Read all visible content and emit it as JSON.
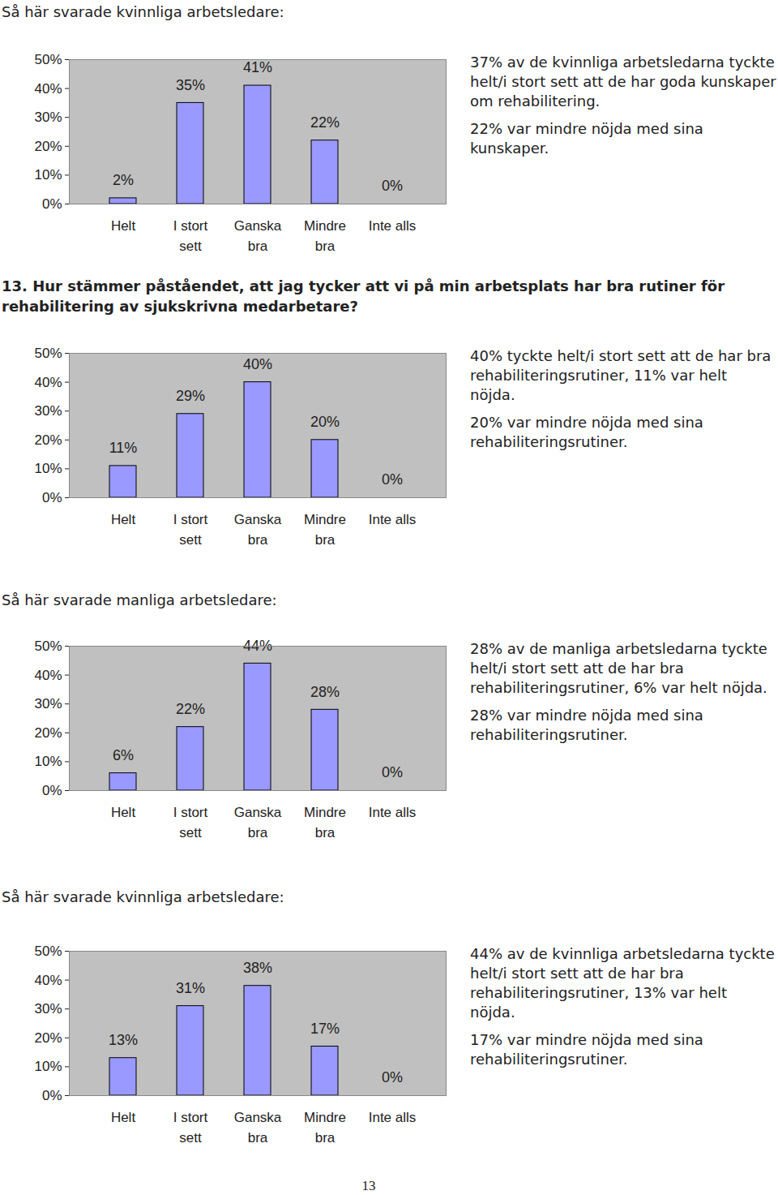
{
  "chart_data": [
    {
      "type": "bar",
      "title": "Så här svarade kvinnliga arbetsledare:",
      "categories": [
        "Helt",
        "I stort\nsett",
        "Ganska\nbra",
        "Mindre\nbra",
        "Inte alls"
      ],
      "values": [
        2,
        35,
        41,
        22,
        0
      ],
      "value_labels": [
        "2%",
        "35%",
        "41%",
        "22%",
        "0%"
      ],
      "color": "#9999ff",
      "data_labels": true,
      "grid": false,
      "ylim": [
        0,
        50
      ],
      "yticks": [
        {
          "value": 0,
          "label": "0%"
        },
        {
          "value": 10,
          "label": "10%"
        },
        {
          "value": 20,
          "label": "20%"
        },
        {
          "value": 30,
          "label": "30%"
        },
        {
          "value": 40,
          "label": "40%"
        },
        {
          "value": 50,
          "label": "50%"
        }
      ],
      "annotations": [
        "37% av de kvinnliga arbetsledarna tyckte helt/i stort sett att de har goda kunskaper om rehabilitering.",
        "22% var mindre nöjda med sina kunskaper."
      ]
    },
    {
      "type": "bar",
      "title": "13. Hur stämmer påståendet, att jag tycker att vi på min arbetsplats har bra rutiner för rehabilitering av sjukskrivna medarbetare?",
      "categories": [
        "Helt",
        "I stort\nsett",
        "Ganska\nbra",
        "Mindre\nbra",
        "Inte alls"
      ],
      "values": [
        11,
        29,
        40,
        20,
        0
      ],
      "value_labels": [
        "11%",
        "29%",
        "40%",
        "20%",
        "0%"
      ],
      "color": "#9999ff",
      "data_labels": true,
      "grid": false,
      "ylim": [
        0,
        50
      ],
      "yticks": [
        {
          "value": 0,
          "label": "0%"
        },
        {
          "value": 10,
          "label": "10%"
        },
        {
          "value": 20,
          "label": "20%"
        },
        {
          "value": 30,
          "label": "30%"
        },
        {
          "value": 40,
          "label": "40%"
        },
        {
          "value": 50,
          "label": "50%"
        }
      ],
      "annotations": [
        "40% tyckte helt/i stort sett att de har bra rehabiliteringsrutiner, 11% var helt nöjda.",
        "20% var mindre nöjda med sina rehabiliteringsrutiner."
      ]
    },
    {
      "type": "bar",
      "title": "Så här svarade manliga arbetsledare:",
      "categories": [
        "Helt",
        "I stort\nsett",
        "Ganska\nbra",
        "Mindre\nbra",
        "Inte alls"
      ],
      "values": [
        6,
        22,
        44,
        28,
        0
      ],
      "value_labels": [
        "6%",
        "22%",
        "44%",
        "28%",
        "0%"
      ],
      "color": "#9999ff",
      "data_labels": true,
      "grid": false,
      "ylim": [
        0,
        50
      ],
      "yticks": [
        {
          "value": 0,
          "label": "0%"
        },
        {
          "value": 10,
          "label": "10%"
        },
        {
          "value": 20,
          "label": "20%"
        },
        {
          "value": 30,
          "label": "30%"
        },
        {
          "value": 40,
          "label": "40%"
        },
        {
          "value": 50,
          "label": "50%"
        }
      ],
      "annotations": [
        "28% av de manliga arbetsledarna tyckte helt/i stort sett att de har bra rehabiliteringsrutiner, 6% var helt nöjda.",
        "28% var mindre nöjda med sina rehabiliteringsrutiner."
      ]
    },
    {
      "type": "bar",
      "title": "Så här svarade kvinnliga arbetsledare:",
      "categories": [
        "Helt",
        "I stort\nsett",
        "Ganska\nbra",
        "Mindre\nbra",
        "Inte alls"
      ],
      "values": [
        13,
        31,
        38,
        17,
        0
      ],
      "value_labels": [
        "13%",
        "31%",
        "38%",
        "17%",
        "0%"
      ],
      "color": "#9999ff",
      "data_labels": true,
      "grid": false,
      "ylim": [
        0,
        50
      ],
      "yticks": [
        {
          "value": 0,
          "label": "0%"
        },
        {
          "value": 10,
          "label": "10%"
        },
        {
          "value": 20,
          "label": "20%"
        },
        {
          "value": 30,
          "label": "30%"
        },
        {
          "value": 40,
          "label": "40%"
        },
        {
          "value": 50,
          "label": "50%"
        }
      ],
      "annotations": [
        "44% av de kvinnliga arbetsledarna tyckte helt/i stort sett att de har bra rehabiliteringsrutiner, 13% var helt nöjda.",
        "17% var mindre nöjda med sina rehabiliteringsrutiner."
      ]
    }
  ],
  "page_number": "13"
}
